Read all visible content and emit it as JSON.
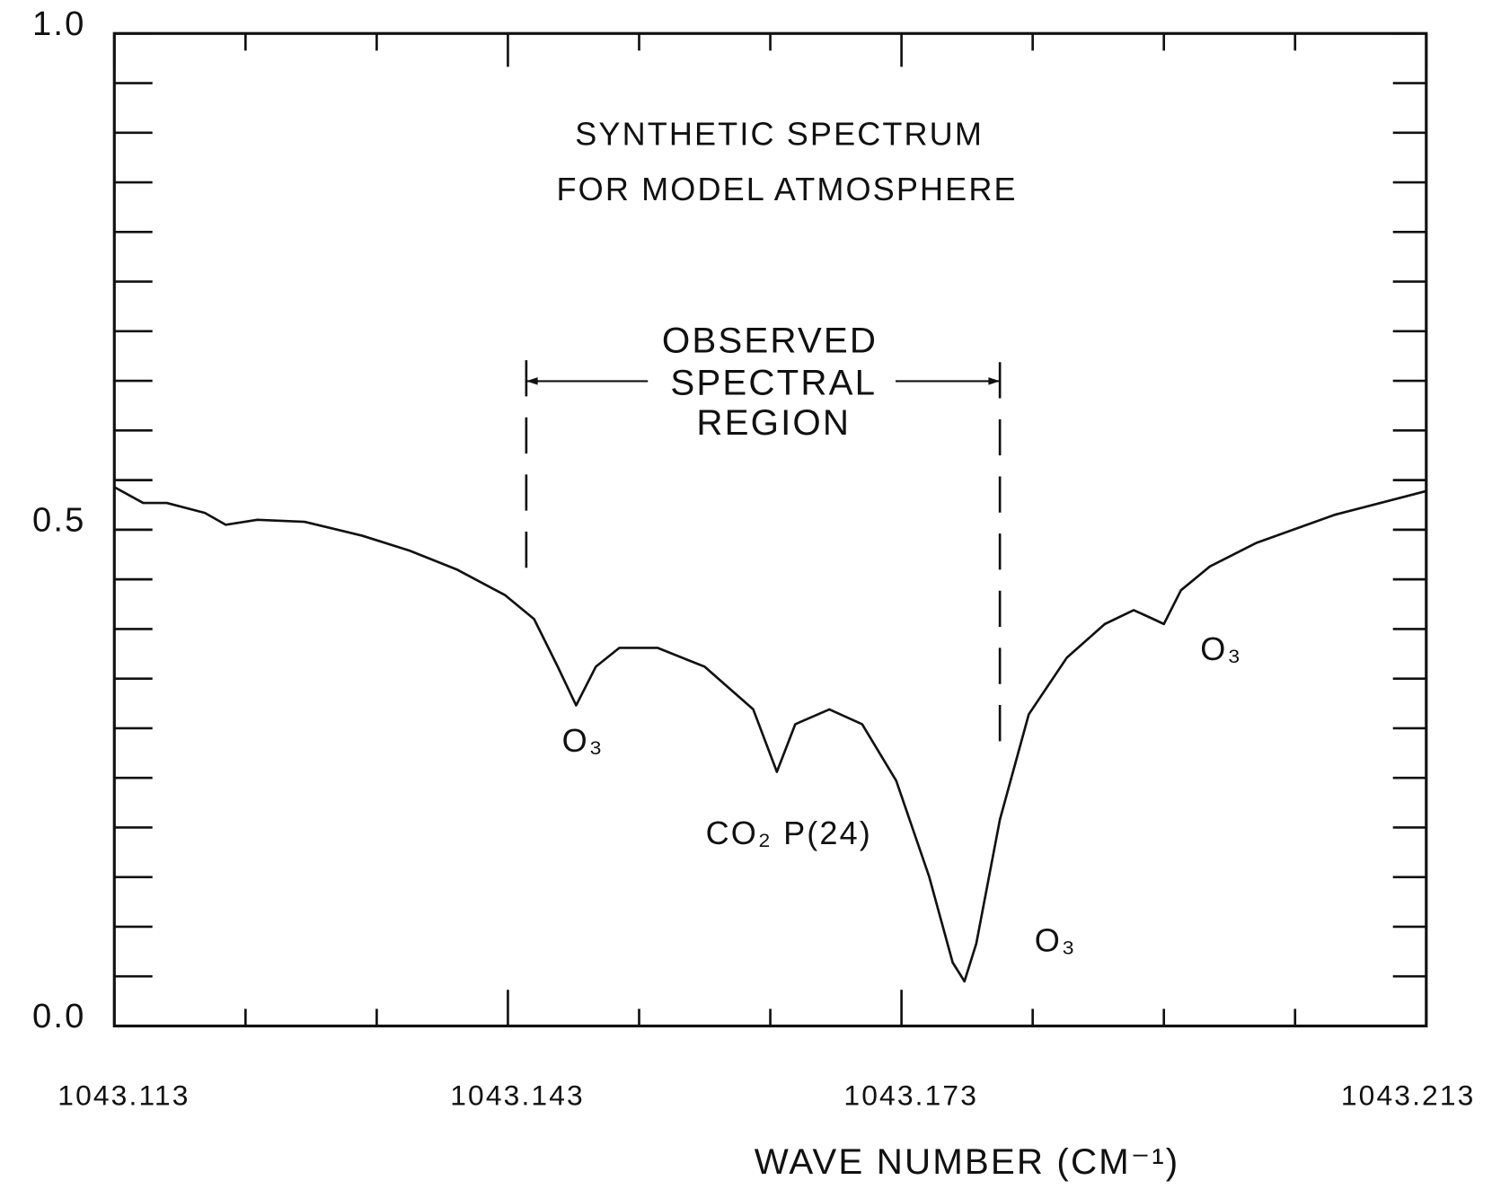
{
  "chart_data": {
    "type": "line",
    "annotations": [
      "SYNTHETIC SPECTRUM",
      "FOR MODEL ATMOSPHERE",
      "O₃",
      "CO₂ P(24)",
      "O₃",
      "O₃"
    ],
    "region": {
      "label": [
        "OBSERVED",
        "SPECTRAL",
        "REGION"
      ],
      "range": [
        1043.1444,
        1043.1805
      ]
    },
    "xlabel": "WAVE NUMBER (CM⁻¹)",
    "x": [
      1043.113,
      1043.1152,
      1043.117,
      1043.1199,
      1043.1215,
      1043.1239,
      1043.1275,
      1043.1319,
      1043.1355,
      1043.1391,
      1043.1428,
      1043.145,
      1043.1468,
      1043.1482,
      1043.1497,
      1043.1515,
      1043.1544,
      1043.158,
      1043.1617,
      1043.1635,
      1043.1649,
      1043.1675,
      1043.17,
      1043.1726,
      1043.1751,
      1043.1769,
      1043.1778,
      1043.1787,
      1043.1805,
      1043.1827,
      1043.1856,
      1043.1885,
      1043.1907,
      1043.1922,
      1043.193,
      1043.1943,
      1043.1965,
      1043.2001,
      1043.206,
      1043.213
    ],
    "values": [
      0.543,
      0.527,
      0.527,
      0.517,
      0.505,
      0.51,
      0.508,
      0.494,
      0.479,
      0.46,
      0.434,
      0.41,
      0.362,
      0.323,
      0.362,
      0.381,
      0.381,
      0.362,
      0.319,
      0.256,
      0.304,
      0.319,
      0.304,
      0.247,
      0.151,
      0.064,
      0.045,
      0.083,
      0.208,
      0.314,
      0.371,
      0.405,
      0.419,
      0.41,
      0.405,
      0.439,
      0.463,
      0.487,
      0.515,
      0.539
    ],
    "color": "#111111",
    "xlim": [
      1043.113,
      1043.213
    ],
    "xticks": [
      1043.113,
      1043.143,
      1043.173,
      1043.213
    ],
    "xminor_ticks": [
      1043.123,
      1043.133,
      1043.153,
      1043.163,
      1043.183,
      1043.193,
      1043.203
    ],
    "ylim": [
      0,
      1
    ],
    "yticks": [
      {
        "value": 0,
        "label": "0.0"
      },
      0.5,
      {
        "value": 1,
        "label": "1.0"
      }
    ],
    "yminor_ticks": [
      0.05,
      0.1,
      0.15,
      0.2,
      0.25,
      0.3,
      0.35,
      0.4,
      0.45,
      0.55,
      0.6,
      0.65,
      0.7,
      0.75,
      0.8,
      0.85,
      0.9,
      0.95
    ]
  }
}
